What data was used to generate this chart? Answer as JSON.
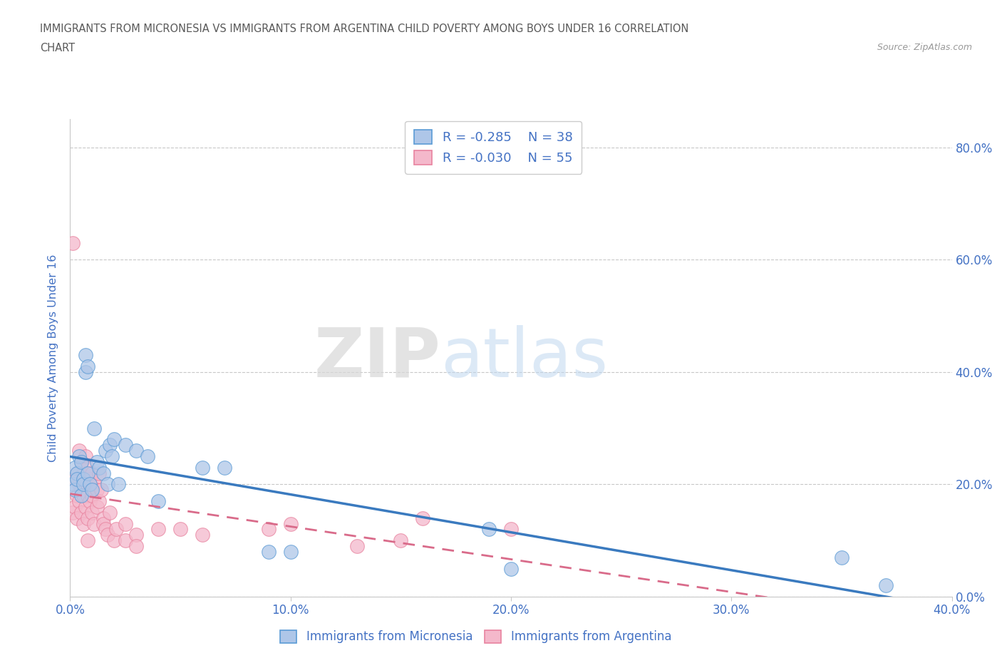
{
  "title_line1": "IMMIGRANTS FROM MICRONESIA VS IMMIGRANTS FROM ARGENTINA CHILD POVERTY AMONG BOYS UNDER 16 CORRELATION",
  "title_line2": "CHART",
  "source_text": "Source: ZipAtlas.com",
  "ylabel": "Child Poverty Among Boys Under 16",
  "x_tick_vals": [
    0.0,
    0.1,
    0.2,
    0.3,
    0.4
  ],
  "x_tick_labels": [
    "0.0%",
    "10.0%",
    "20.0%",
    "30.0%",
    "40.0%"
  ],
  "y_tick_vals": [
    0.0,
    0.2,
    0.4,
    0.6,
    0.8
  ],
  "y_tick_labels": [
    "0.0%",
    "20.0%",
    "40.0%",
    "60.0%",
    "80.0%"
  ],
  "legend_micronesia": "Immigrants from Micronesia",
  "legend_argentina": "Immigrants from Argentina",
  "R_micronesia": -0.285,
  "N_micronesia": 38,
  "R_argentina": -0.03,
  "N_argentina": 55,
  "color_micronesia_fill": "#aec6e8",
  "color_argentina_fill": "#f4b8cb",
  "color_micronesia_edge": "#5b9bd5",
  "color_argentina_edge": "#e8839f",
  "color_micronesia_line": "#3a7abf",
  "color_argentina_line": "#d96b8a",
  "color_text_blue": "#4472c4",
  "color_grid": "#c8c8c8",
  "color_title": "#595959",
  "watermark_zip": "ZIP",
  "watermark_atlas": "atlas",
  "bg_color": "#ffffff",
  "xlim": [
    0.0,
    0.4
  ],
  "ylim": [
    0.0,
    0.85
  ],
  "micronesia_x": [
    0.001,
    0.002,
    0.002,
    0.003,
    0.003,
    0.004,
    0.005,
    0.005,
    0.006,
    0.006,
    0.007,
    0.007,
    0.008,
    0.008,
    0.009,
    0.01,
    0.011,
    0.012,
    0.013,
    0.015,
    0.016,
    0.017,
    0.018,
    0.019,
    0.02,
    0.022,
    0.025,
    0.03,
    0.035,
    0.04,
    0.06,
    0.07,
    0.09,
    0.1,
    0.19,
    0.2,
    0.35,
    0.37
  ],
  "micronesia_y": [
    0.2,
    0.23,
    0.19,
    0.22,
    0.21,
    0.25,
    0.18,
    0.24,
    0.21,
    0.2,
    0.43,
    0.4,
    0.41,
    0.22,
    0.2,
    0.19,
    0.3,
    0.24,
    0.23,
    0.22,
    0.26,
    0.2,
    0.27,
    0.25,
    0.28,
    0.2,
    0.27,
    0.26,
    0.25,
    0.17,
    0.23,
    0.23,
    0.08,
    0.08,
    0.12,
    0.05,
    0.07,
    0.02
  ],
  "argentina_x": [
    0.001,
    0.001,
    0.002,
    0.002,
    0.003,
    0.003,
    0.003,
    0.004,
    0.004,
    0.004,
    0.005,
    0.005,
    0.005,
    0.006,
    0.006,
    0.006,
    0.007,
    0.007,
    0.007,
    0.008,
    0.008,
    0.008,
    0.008,
    0.009,
    0.009,
    0.01,
    0.01,
    0.01,
    0.011,
    0.011,
    0.012,
    0.012,
    0.013,
    0.013,
    0.014,
    0.015,
    0.015,
    0.016,
    0.017,
    0.018,
    0.02,
    0.021,
    0.025,
    0.025,
    0.03,
    0.03,
    0.04,
    0.05,
    0.06,
    0.09,
    0.1,
    0.13,
    0.15,
    0.16,
    0.2
  ],
  "argentina_y": [
    0.63,
    0.15,
    0.21,
    0.16,
    0.18,
    0.22,
    0.14,
    0.26,
    0.2,
    0.17,
    0.24,
    0.19,
    0.15,
    0.22,
    0.18,
    0.13,
    0.25,
    0.2,
    0.16,
    0.23,
    0.18,
    0.14,
    0.1,
    0.21,
    0.17,
    0.22,
    0.18,
    0.15,
    0.2,
    0.13,
    0.19,
    0.16,
    0.22,
    0.17,
    0.19,
    0.14,
    0.13,
    0.12,
    0.11,
    0.15,
    0.1,
    0.12,
    0.13,
    0.1,
    0.11,
    0.09,
    0.12,
    0.12,
    0.11,
    0.12,
    0.13,
    0.09,
    0.1,
    0.14,
    0.12
  ]
}
